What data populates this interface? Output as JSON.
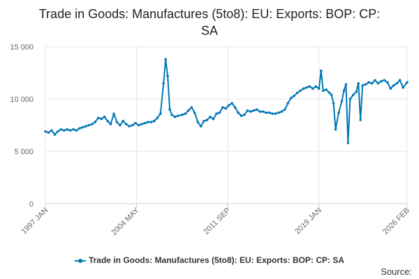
{
  "chart_data": {
    "type": "line",
    "title_line1": "Trade in Goods: Manufactures (5to8): EU: Exports: BOP: CP:",
    "title_line2": "SA",
    "xlabel": "",
    "ylabel": "",
    "ylim": [
      0,
      15000
    ],
    "y_ticks": [
      {
        "value": 0,
        "label": "0"
      },
      {
        "value": 5000,
        "label": "5 000"
      },
      {
        "value": 10000,
        "label": "10 000"
      },
      {
        "value": 15000,
        "label": "15 000"
      }
    ],
    "x_ticks": [
      {
        "value": "1997-01",
        "label": "1997 JAN"
      },
      {
        "value": "2004-05",
        "label": "2004 MAY"
      },
      {
        "value": "2011-09",
        "label": "2011 SEP"
      },
      {
        "value": "2019-01",
        "label": "2019 JAN"
      },
      {
        "value": "2026-02",
        "label": "2026 FEB"
      }
    ],
    "grid": true,
    "legend_position": "bottom",
    "color": "#0077b6",
    "series": [
      {
        "name": "Trade in Goods: Manufactures (5to8): EU: Exports: BOP: CP: SA",
        "points": [
          [
            "1997-01",
            6900
          ],
          [
            "1997-04",
            6800
          ],
          [
            "1997-07",
            7000
          ],
          [
            "1997-10",
            6600
          ],
          [
            "1998-01",
            6900
          ],
          [
            "1998-04",
            7100
          ],
          [
            "1998-07",
            7000
          ],
          [
            "1998-10",
            7100
          ],
          [
            "1999-01",
            7000
          ],
          [
            "1999-04",
            7100
          ],
          [
            "1999-07",
            7000
          ],
          [
            "1999-10",
            7200
          ],
          [
            "2000-01",
            7300
          ],
          [
            "2000-04",
            7400
          ],
          [
            "2000-07",
            7500
          ],
          [
            "2000-10",
            7600
          ],
          [
            "2001-01",
            7800
          ],
          [
            "2001-04",
            8200
          ],
          [
            "2001-07",
            8100
          ],
          [
            "2001-10",
            8300
          ],
          [
            "2002-01",
            7900
          ],
          [
            "2002-04",
            7600
          ],
          [
            "2002-07",
            8600
          ],
          [
            "2002-10",
            7800
          ],
          [
            "2003-01",
            7500
          ],
          [
            "2003-04",
            7900
          ],
          [
            "2003-07",
            7600
          ],
          [
            "2003-10",
            7400
          ],
          [
            "2004-01",
            7500
          ],
          [
            "2004-04",
            7700
          ],
          [
            "2004-07",
            7500
          ],
          [
            "2004-10",
            7600
          ],
          [
            "2005-01",
            7700
          ],
          [
            "2005-04",
            7800
          ],
          [
            "2005-07",
            7800
          ],
          [
            "2005-10",
            7900
          ],
          [
            "2006-01",
            8200
          ],
          [
            "2006-04",
            8600
          ],
          [
            "2006-07",
            11500
          ],
          [
            "2006-09",
            13800
          ],
          [
            "2006-11",
            12200
          ],
          [
            "2007-01",
            9000
          ],
          [
            "2007-03",
            8500
          ],
          [
            "2007-06",
            8300
          ],
          [
            "2007-09",
            8400
          ],
          [
            "2008-01",
            8500
          ],
          [
            "2008-04",
            8600
          ],
          [
            "2008-07",
            8900
          ],
          [
            "2008-10",
            9200
          ],
          [
            "2009-01",
            8700
          ],
          [
            "2009-04",
            7800
          ],
          [
            "2009-07",
            7400
          ],
          [
            "2009-10",
            7900
          ],
          [
            "2010-01",
            8000
          ],
          [
            "2010-04",
            8300
          ],
          [
            "2010-07",
            8100
          ],
          [
            "2010-10",
            8600
          ],
          [
            "2011-01",
            8700
          ],
          [
            "2011-04",
            9200
          ],
          [
            "2011-07",
            9100
          ],
          [
            "2011-10",
            9400
          ],
          [
            "2012-01",
            9600
          ],
          [
            "2012-04",
            9200
          ],
          [
            "2012-07",
            8700
          ],
          [
            "2012-10",
            8400
          ],
          [
            "2013-01",
            8500
          ],
          [
            "2013-04",
            8900
          ],
          [
            "2013-07",
            8800
          ],
          [
            "2013-10",
            8900
          ],
          [
            "2014-01",
            9000
          ],
          [
            "2014-04",
            8800
          ],
          [
            "2014-07",
            8800
          ],
          [
            "2014-10",
            8700
          ],
          [
            "2015-01",
            8700
          ],
          [
            "2015-04",
            8600
          ],
          [
            "2015-07",
            8600
          ],
          [
            "2015-10",
            8700
          ],
          [
            "2016-01",
            8800
          ],
          [
            "2016-04",
            9000
          ],
          [
            "2016-07",
            9600
          ],
          [
            "2016-10",
            10100
          ],
          [
            "2017-01",
            10300
          ],
          [
            "2017-04",
            10600
          ],
          [
            "2017-07",
            10800
          ],
          [
            "2017-10",
            11000
          ],
          [
            "2018-01",
            11100
          ],
          [
            "2018-04",
            11200
          ],
          [
            "2018-07",
            11000
          ],
          [
            "2018-10",
            11200
          ],
          [
            "2019-01",
            11000
          ],
          [
            "2019-03",
            12700
          ],
          [
            "2019-05",
            10800
          ],
          [
            "2019-08",
            10900
          ],
          [
            "2019-11",
            10600
          ],
          [
            "2020-01",
            10400
          ],
          [
            "2020-03",
            9600
          ],
          [
            "2020-05",
            7100
          ],
          [
            "2020-08",
            8700
          ],
          [
            "2020-11",
            9800
          ],
          [
            "2021-01",
            10800
          ],
          [
            "2021-03",
            11400
          ],
          [
            "2021-05",
            5800
          ],
          [
            "2021-07",
            10000
          ],
          [
            "2021-10",
            10400
          ],
          [
            "2022-01",
            10700
          ],
          [
            "2022-03",
            11500
          ],
          [
            "2022-05",
            8000
          ],
          [
            "2022-07",
            11300
          ],
          [
            "2022-10",
            11400
          ],
          [
            "2023-01",
            11600
          ],
          [
            "2023-04",
            11500
          ],
          [
            "2023-07",
            11800
          ],
          [
            "2023-10",
            11500
          ],
          [
            "2024-01",
            11700
          ],
          [
            "2024-04",
            11800
          ],
          [
            "2024-07",
            11600
          ],
          [
            "2024-10",
            11000
          ],
          [
            "2025-01",
            11300
          ],
          [
            "2025-04",
            11500
          ],
          [
            "2025-07",
            11800
          ],
          [
            "2025-10",
            11100
          ],
          [
            "2026-02",
            11600
          ]
        ]
      }
    ]
  },
  "legend": {
    "label": "Trade in Goods: Manufactures (5to8): EU: Exports: BOP: CP: SA"
  },
  "source": {
    "label": "Source:"
  }
}
